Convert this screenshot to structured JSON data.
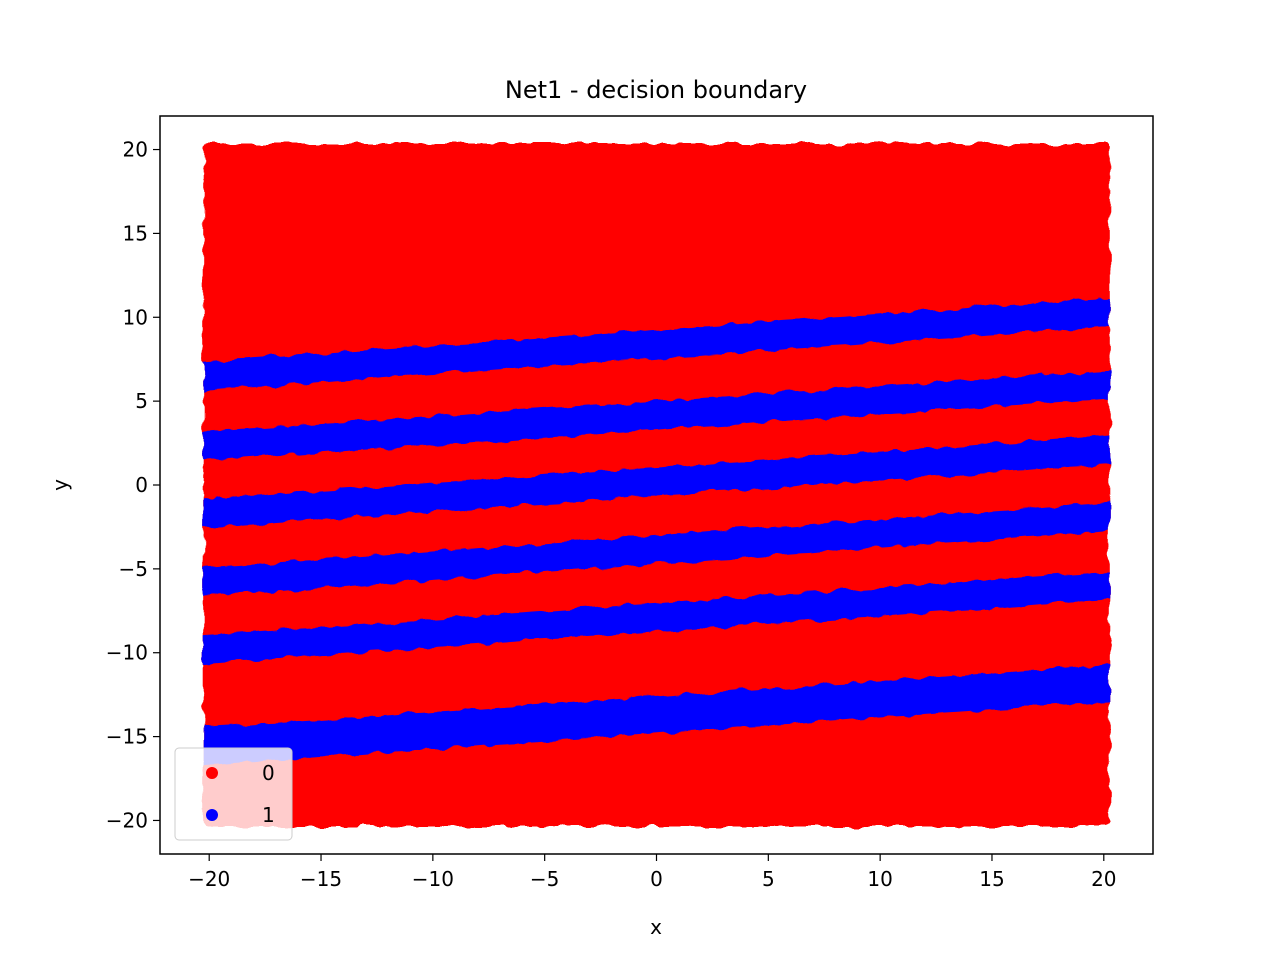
{
  "chart_data": {
    "type": "scatter",
    "title": "Net1 - decision boundary",
    "xlabel": "x",
    "ylabel": "y",
    "xlim": [
      -22.2,
      22.2
    ],
    "ylim": [
      -22.0,
      22.0
    ],
    "xticks": [
      -20,
      -15,
      -10,
      -5,
      0,
      5,
      10,
      15,
      20
    ],
    "xtick_labels": [
      "−20",
      "−15",
      "−10",
      "−5",
      "0",
      "5",
      "10",
      "15",
      "20"
    ],
    "yticks": [
      -20,
      -15,
      -10,
      -5,
      0,
      5,
      10,
      15,
      20
    ],
    "ytick_labels": [
      "−20",
      "−15",
      "−10",
      "−5",
      "0",
      "5",
      "10",
      "15",
      "20"
    ],
    "grid": false,
    "legend_position": "lower-left",
    "data_extent": {
      "x": [
        -20,
        20
      ],
      "y": [
        -20,
        20
      ]
    },
    "series": [
      {
        "name": "0",
        "color": "#ff0000"
      },
      {
        "name": "1",
        "color": "#0000ff"
      }
    ],
    "class1_bands": [
      {
        "from_x": -20,
        "to_x": 20,
        "y_at_from": 6.5,
        "y_at_to": 10.3,
        "thickness": 1.7
      },
      {
        "from_x": -20,
        "to_x": 20,
        "y_at_from": 2.3,
        "y_at_to": 6.0,
        "thickness": 1.7
      },
      {
        "from_x": -20,
        "to_x": 20,
        "y_at_from": -1.7,
        "y_at_to": 2.1,
        "thickness": 1.7
      },
      {
        "from_x": -20,
        "to_x": 20,
        "y_at_from": -5.8,
        "y_at_to": -1.9,
        "thickness": 1.7
      },
      {
        "from_x": -20,
        "to_x": 20,
        "y_at_from": -9.8,
        "y_at_to": -6.0,
        "thickness": 1.7
      },
      {
        "from_x": -20,
        "to_x": 20,
        "y_at_from": -15.6,
        "y_at_to": -11.8,
        "thickness": 2.2
      }
    ]
  }
}
